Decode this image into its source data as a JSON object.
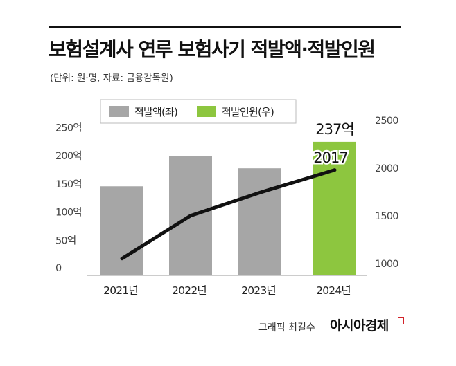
{
  "title": "보험설계사 연루 보험사기 적발액·적발인원",
  "subtitle": "(단위: 원·명, 자료: 금융감독원)",
  "footer": {
    "credit": "그래픽 최길수",
    "brand": "아시아경제"
  },
  "colors": {
    "bar_gray": "#a6a6a6",
    "bar_green": "#8dc63f",
    "line": "#111111",
    "rule": "#111111",
    "brand_accent": "#d2232a"
  },
  "chart_data": {
    "type": "bar",
    "categories": [
      "2021년",
      "2022년",
      "2023년",
      "2024년"
    ],
    "series": [
      {
        "name": "적발액(좌)",
        "type": "bar",
        "axis": "left",
        "values": [
          158,
          212,
          190,
          237
        ]
      },
      {
        "name": "적발인원(우)",
        "type": "line",
        "axis": "right",
        "values": [
          1089,
          1538,
          1780,
          2017
        ]
      }
    ],
    "bar_colors": [
      "#a6a6a6",
      "#a6a6a6",
      "#a6a6a6",
      "#8dc63f"
    ],
    "left_axis": {
      "ticks": [
        0,
        50,
        100,
        150,
        200,
        250
      ],
      "tick_labels": [
        "0",
        "50억",
        "100억",
        "150억",
        "200억",
        "250억"
      ],
      "ylim": [
        0,
        270
      ]
    },
    "right_axis": {
      "ticks": [
        1000,
        1500,
        2000,
        2500
      ],
      "tick_labels": [
        "1000",
        "1500",
        "2000",
        "2500"
      ],
      "ylim": [
        1000,
        2500
      ]
    },
    "annotations": [
      "237억",
      "2017"
    ],
    "legend": {
      "position": "top-center",
      "entries": [
        "적발액(좌)",
        "적발인원(우)"
      ]
    },
    "grid": false
  }
}
